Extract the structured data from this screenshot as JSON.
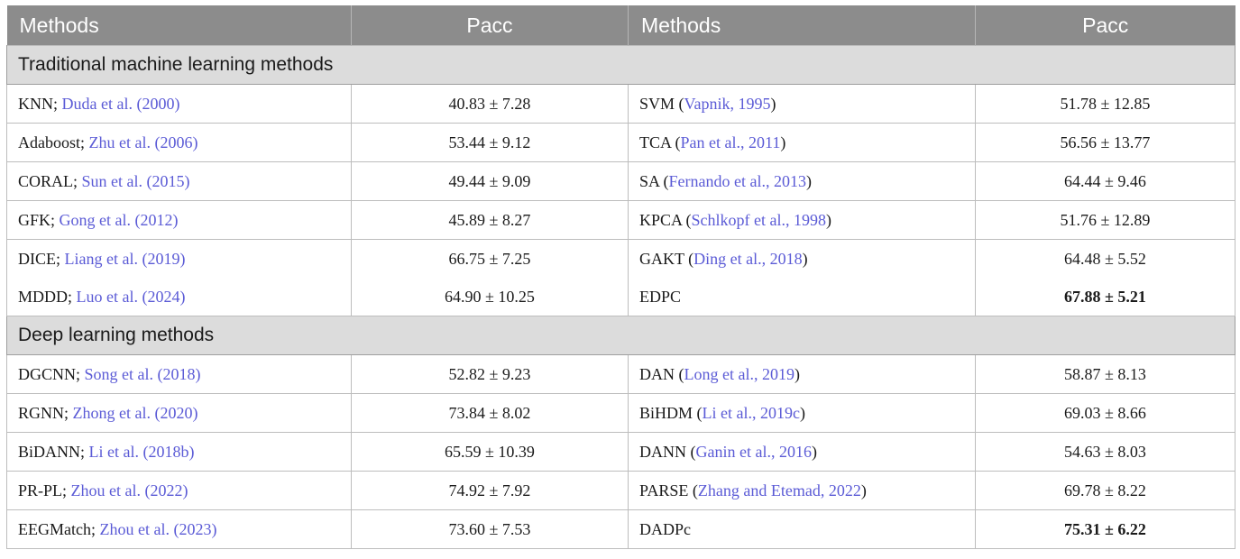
{
  "headers": [
    "Methods",
    "Pacc",
    "Methods",
    "Pacc"
  ],
  "sections": [
    {
      "title": "Traditional machine learning methods",
      "rows": [
        {
          "m1": "KNN; ",
          "c1": "Duda et al. (2000)",
          "e1": "",
          "v1": "40.83 ± 7.28",
          "m2": "SVM (",
          "c2": "Vapnik, 1995",
          "e2": ")",
          "v2": "51.78 ± 12.85"
        },
        {
          "m1": "Adaboost; ",
          "c1": "Zhu et al. (2006)",
          "e1": "",
          "v1": "53.44 ± 9.12",
          "m2": "TCA (",
          "c2": "Pan et al., 2011",
          "e2": ")",
          "v2": "56.56 ± 13.77"
        },
        {
          "m1": "CORAL; ",
          "c1": "Sun et al. (2015)",
          "e1": "",
          "v1": "49.44 ± 9.09",
          "m2": "SA (",
          "c2": "Fernando et al., 2013",
          "e2": ")",
          "v2": "64.44 ± 9.46"
        },
        {
          "m1": "GFK; ",
          "c1": "Gong et al. (2012)",
          "e1": "",
          "v1": "45.89 ± 8.27",
          "m2": "KPCA (",
          "c2": "Schlkopf et al., 1998",
          "e2": ")",
          "v2": "51.76 ± 12.89"
        },
        {
          "m1": "DICE; ",
          "c1": "Liang et al. (2019)",
          "e1": "",
          "v1": "66.75 ± 7.25",
          "m2": "GAKT (",
          "c2": "Ding et al., 2018",
          "e2": ")",
          "v2": "64.48 ± 5.52"
        },
        {
          "m1": "MDDD; ",
          "c1": "Luo et al. (2024)",
          "e1": "",
          "v1": "64.90 ± 10.25",
          "m2": "EDPC",
          "c2": "",
          "e2": "",
          "v2": "67.88 ± 5.21"
        }
      ]
    },
    {
      "title": "Deep learning methods",
      "rows": [
        {
          "m1": "DGCNN; ",
          "c1": "Song et al. (2018)",
          "e1": "",
          "v1": "52.82 ± 9.23",
          "m2": "DAN (",
          "c2": "Long et al., 2019",
          "e2": ")",
          "v2": "58.87 ± 8.13"
        },
        {
          "m1": "RGNN; ",
          "c1": "Zhong et al. (2020)",
          "e1": "",
          "v1": "73.84 ± 8.02",
          "m2": "BiHDM (",
          "c2": "Li et al., 2019c",
          "e2": ")",
          "v2": "69.03 ± 8.66"
        },
        {
          "m1": "BiDANN; ",
          "c1": "Li et al. (2018b)",
          "e1": "",
          "v1": "65.59 ± 10.39",
          "m2": "DANN (",
          "c2": "Ganin et al., 2016",
          "e2": ")",
          "v2": "54.63 ± 8.03"
        },
        {
          "m1": "PR-PL; ",
          "c1": "Zhou et al. (2022)",
          "e1": "",
          "v1": "74.92 ± 7.92",
          "m2": "PARSE (",
          "c2": "Zhang and Etemad, 2022",
          "e2": ")",
          "v2": "69.78 ± 8.22"
        },
        {
          "m1": "EEGMatch; ",
          "c1": "Zhou et al. (2023)",
          "e1": "",
          "v1": "73.60 ± 7.53",
          "m2": "DADPc",
          "c2": "",
          "e2": "",
          "v2": "75.31 ± 6.22"
        }
      ]
    }
  ]
}
